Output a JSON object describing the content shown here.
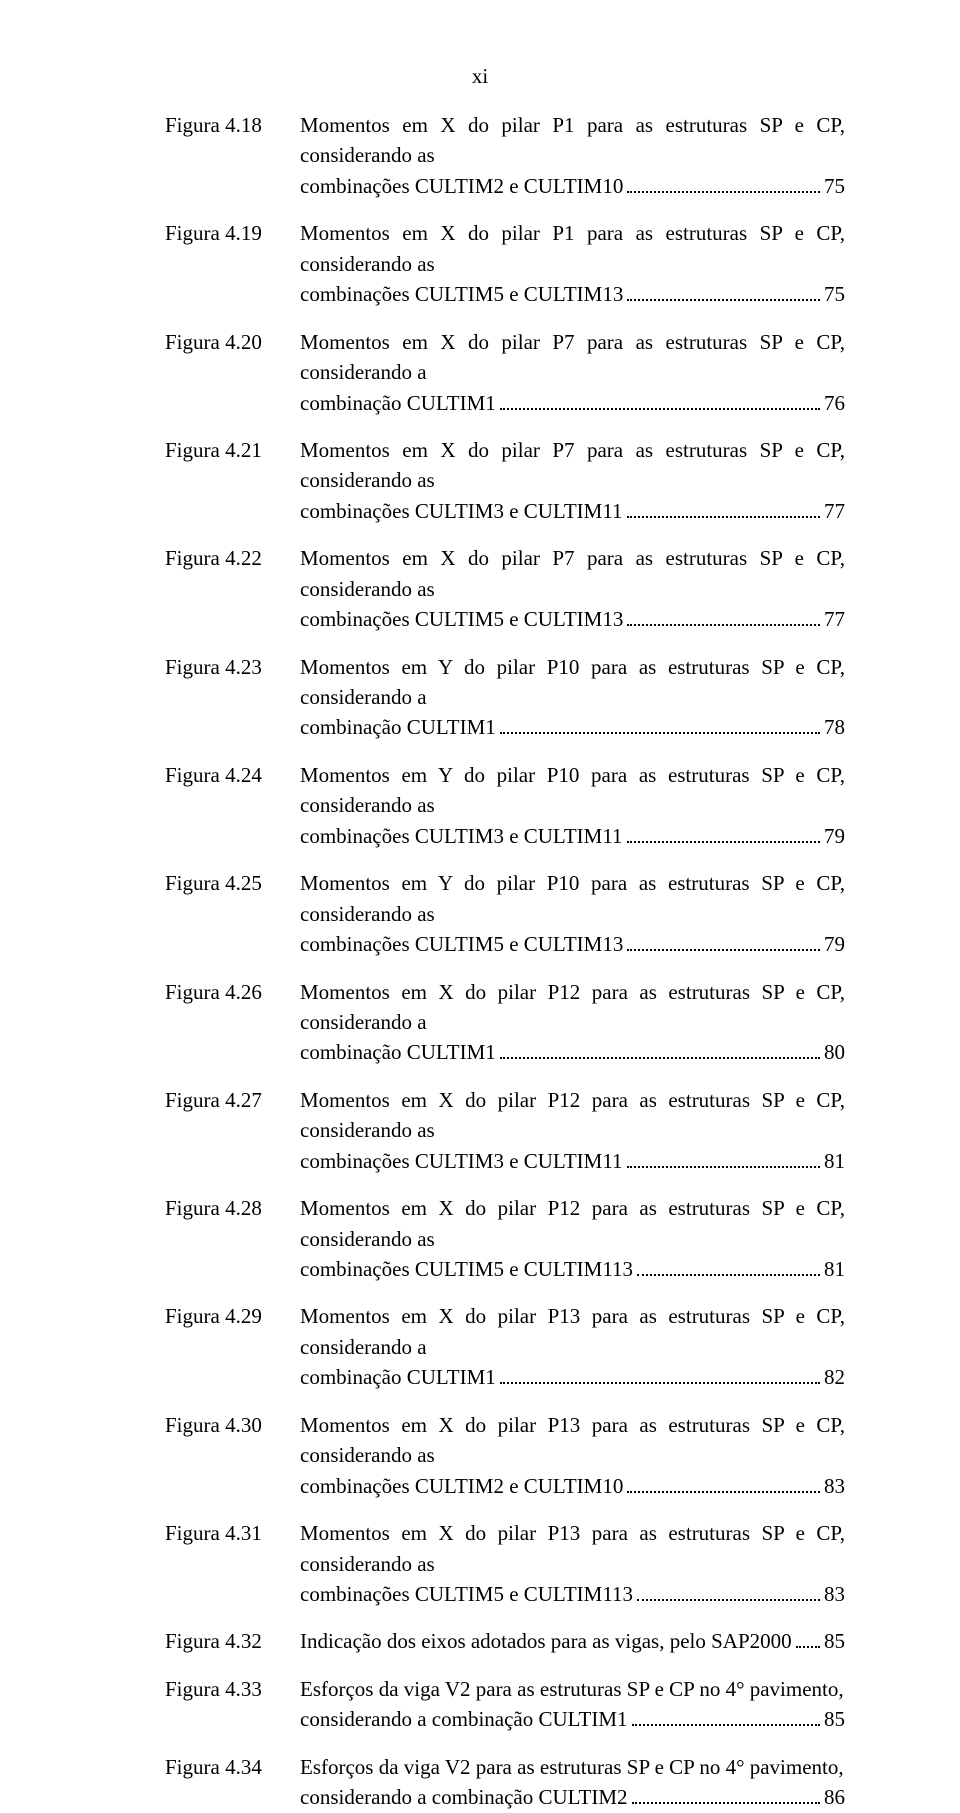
{
  "page_marker": "xi",
  "entries": [
    {
      "label": "Figura 4.18",
      "line1": "Momentos em X do pilar P1 para as estruturas SP e CP, considerando as",
      "line2": "combinações CULTIM2 e CULTIM10",
      "page": "75"
    },
    {
      "label": "Figura 4.19",
      "line1": "Momentos em X do pilar P1 para as estruturas SP e CP, considerando as",
      "line2": "combinações CULTIM5 e CULTIM13",
      "page": "75"
    },
    {
      "label": "Figura 4.20",
      "line1": "Momentos em X do pilar P7 para as estruturas SP e CP, considerando a",
      "line2": "combinação CULTIM1",
      "page": "76"
    },
    {
      "label": "Figura 4.21",
      "line1": "Momentos em X do pilar P7 para as estruturas SP e CP, considerando as",
      "line2": "combinações CULTIM3 e CULTIM11",
      "page": "77"
    },
    {
      "label": "Figura 4.22",
      "line1": "Momentos em X do pilar P7 para as estruturas SP e CP, considerando as",
      "line2": "combinações CULTIM5 e CULTIM13",
      "page": "77"
    },
    {
      "label": "Figura 4.23",
      "line1": "Momentos em Y do pilar P10 para as estruturas SP e CP, considerando a",
      "line2": "combinação CULTIM1",
      "page": "78"
    },
    {
      "label": "Figura 4.24",
      "line1": "Momentos em Y do pilar P10 para as estruturas SP e CP, considerando as",
      "line2": "combinações CULTIM3 e CULTIM11",
      "page": "79"
    },
    {
      "label": "Figura 4.25",
      "line1": "Momentos em Y do pilar P10 para as estruturas SP e CP, considerando as",
      "line2": "combinações CULTIM5 e CULTIM13",
      "page": "79"
    },
    {
      "label": "Figura 4.26",
      "line1": "Momentos em X do pilar P12 para as estruturas SP e CP, considerando a",
      "line2": "combinação CULTIM1",
      "page": "80"
    },
    {
      "label": "Figura 4.27",
      "line1": "Momentos em X do pilar P12 para as estruturas SP e CP, considerando as",
      "line2": "combinações CULTIM3 e CULTIM11",
      "page": "81"
    },
    {
      "label": "Figura 4.28",
      "line1": "Momentos em X do pilar P12 para as estruturas SP e CP, considerando as",
      "line2": "combinações CULTIM5 e CULTIM113",
      "page": "81"
    },
    {
      "label": "Figura 4.29",
      "line1": "Momentos em X do pilar P13 para as estruturas SP e CP, considerando a",
      "line2": "combinação CULTIM1",
      "page": "82"
    },
    {
      "label": "Figura 4.30",
      "line1": "Momentos em X do pilar P13 para as estruturas SP e CP, considerando as",
      "line2": "combinações CULTIM2 e CULTIM10",
      "page": "83"
    },
    {
      "label": "Figura 4.31",
      "line1": "Momentos em X do pilar P13 para as estruturas SP e CP, considerando as",
      "line2": "combinações CULTIM5 e CULTIM113",
      "page": "83"
    },
    {
      "label": "Figura 4.32",
      "line1": "",
      "line2": "Indicação dos eixos adotados para as vigas, pelo SAP2000",
      "page": "85"
    },
    {
      "label": "Figura 4.33",
      "line1": "Esforços da viga V2 para as estruturas SP e CP no 4° pavimento,",
      "line2": "considerando a combinação CULTIM1",
      "page": "85"
    },
    {
      "label": "Figura 4.34",
      "line1": "Esforços da viga V2 para as estruturas SP e CP no 4° pavimento,",
      "line2": "considerando a combinação CULTIM2",
      "page": "86"
    }
  ]
}
